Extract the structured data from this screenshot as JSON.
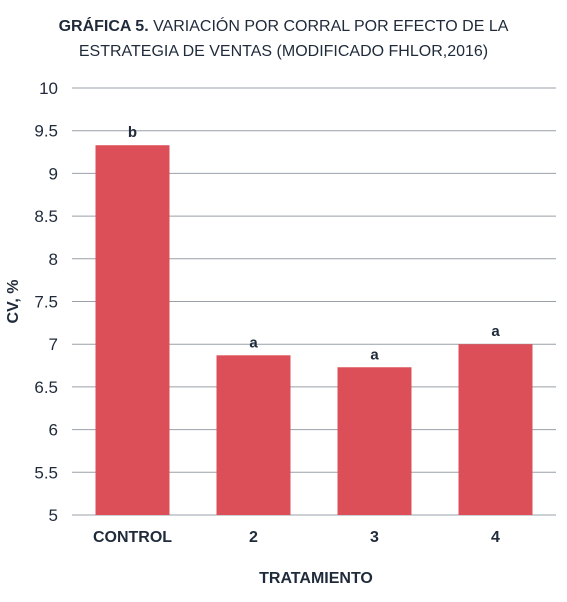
{
  "title": {
    "bold": "GRÁFICA 5.",
    "line1": " VARIACIÓN POR CORRAL POR EFECTO DE LA",
    "line2": "ESTRATEGIA DE VENTAS (MODIFICADO FHLOR,2016)"
  },
  "chart_data": {
    "type": "bar",
    "categories": [
      "CONTROL",
      "2",
      "3",
      "4"
    ],
    "values": [
      9.33,
      6.87,
      6.73,
      7.0
    ],
    "data_labels": [
      "b",
      "a",
      "a",
      "a"
    ],
    "xlabel": "TRATAMIENTO",
    "ylabel": "CV, %",
    "ylim": [
      5,
      10
    ],
    "yticks": [
      "5",
      "5.5",
      "6",
      "6.5",
      "7",
      "7.5",
      "8",
      "8.5",
      "9",
      "9.5",
      "10"
    ],
    "grid": true,
    "bar_color": "#dc4f58",
    "grid_color": "#9aa0a8"
  }
}
